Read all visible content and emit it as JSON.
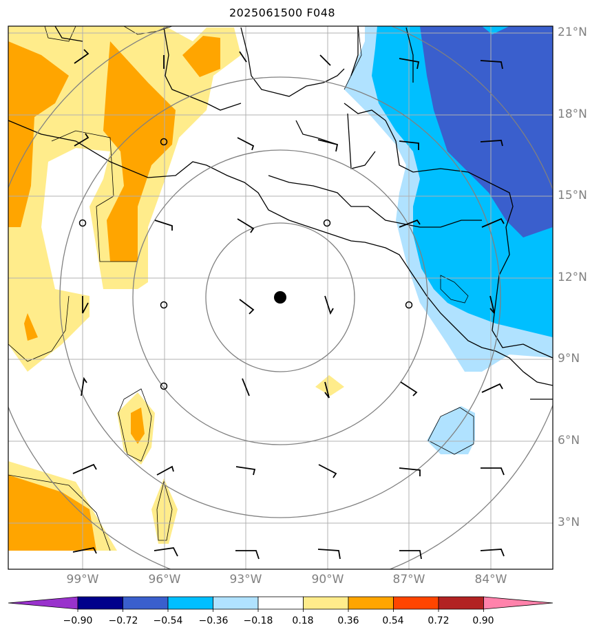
{
  "title": "2025061500 F048",
  "lat_labels": [
    "21°N",
    "18°N",
    "15°N",
    "12°N",
    "9°N",
    "6°N",
    "3°N"
  ],
  "lon_labels": [
    "99°W",
    "96°W",
    "93°W",
    "90°W",
    "87°W",
    "84°W"
  ],
  "colorbar": {
    "ticks": [
      "−0.90",
      "−0.72",
      "−0.54",
      "−0.36",
      "−0.18",
      "0.18",
      "0.36",
      "0.54",
      "0.72",
      "0.90"
    ],
    "colors": [
      "#9932cc",
      "#00008b",
      "#3a5fcd",
      "#00bfff",
      "#b0e2ff",
      "#ffffff",
      "#ffec8b",
      "#ffa500",
      "#ff4500",
      "#b22222",
      "#ff82ab"
    ]
  },
  "colors": {
    "yellow": "#ffec8b",
    "orange": "#ffa500",
    "lightblue": "#b0e2ff",
    "cyan": "#00bfff",
    "blue": "#3a5fcd",
    "grid": "#b0b0b0",
    "ring": "#808080",
    "coast": "#000000"
  }
}
